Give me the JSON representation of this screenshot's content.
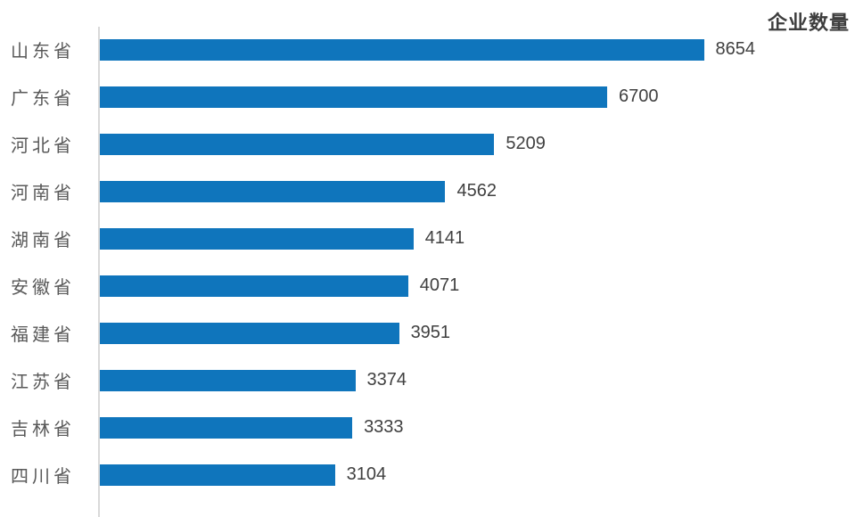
{
  "chart_data": {
    "type": "bar",
    "orientation": "horizontal",
    "title": "企业数量",
    "categories": [
      "山东省",
      "广东省",
      "河北省",
      "河南省",
      "湖南省",
      "安徽省",
      "福建省",
      "江苏省",
      "吉林省",
      "四川省"
    ],
    "values": [
      8654,
      6700,
      5209,
      4562,
      4141,
      4071,
      3951,
      3374,
      3333,
      3104
    ],
    "xlim": [
      0,
      8654
    ],
    "grid": false,
    "data_labels": true,
    "legend": "none",
    "colors": {
      "bar": "#0F75BC",
      "axis_line": "#D9D9D9",
      "category_label": "#595959",
      "value_label": "#404040",
      "title": "#3D3D3D"
    }
  }
}
